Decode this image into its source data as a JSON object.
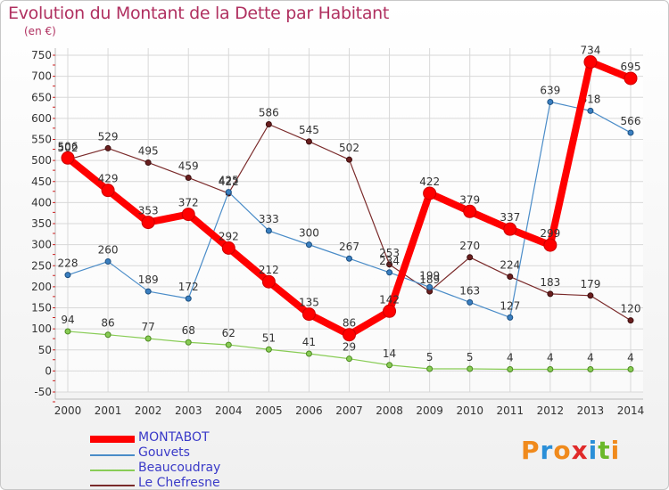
{
  "title": "Evolution du Montant de la Dette par Habitant",
  "unit_label": "(en €)",
  "logo": {
    "text": "Proxiti",
    "letter_colors": [
      "#f08a1c",
      "#2a8fd8",
      "#f08a1c",
      "#e02a2a",
      "#2a8fd8",
      "#6ab82a",
      "#f08a1c"
    ]
  },
  "chart_data": {
    "type": "line",
    "title": "Evolution du Montant de la Dette par Habitant",
    "ylabel": "(en €)",
    "xlabel": "",
    "x": [
      "2000",
      "2001",
      "2002",
      "2003",
      "2004",
      "2005",
      "2006",
      "2007",
      "2008",
      "2009",
      "2010",
      "2011",
      "2012",
      "2013",
      "2014"
    ],
    "ylim": [
      -50,
      750
    ],
    "yticks": [
      -50,
      0,
      50,
      100,
      150,
      200,
      250,
      300,
      350,
      400,
      450,
      500,
      550,
      600,
      650,
      700,
      750
    ],
    "grid": true,
    "legend_position": "bottom-left",
    "series": [
      {
        "name": "MONTABOT",
        "color": "#ff0000",
        "values": [
          506,
          429,
          353,
          372,
          292,
          212,
          135,
          86,
          142,
          422,
          379,
          337,
          299,
          734,
          695
        ]
      },
      {
        "name": "Gouvets",
        "color": "#4a8cc8",
        "values": [
          228,
          260,
          189,
          172,
          425,
          333,
          300,
          267,
          234,
          199,
          163,
          127,
          639,
          618,
          566
        ]
      },
      {
        "name": "Beaucoudray",
        "color": "#88cc55",
        "values": [
          94,
          86,
          77,
          68,
          62,
          51,
          41,
          29,
          14,
          5,
          5,
          4,
          4,
          4,
          4
        ]
      },
      {
        "name": "Le Chefresne",
        "color": "#7a2a2a",
        "values": [
          502,
          529,
          495,
          459,
          422,
          586,
          545,
          502,
          253,
          189,
          270,
          224,
          183,
          179,
          120
        ]
      }
    ]
  }
}
